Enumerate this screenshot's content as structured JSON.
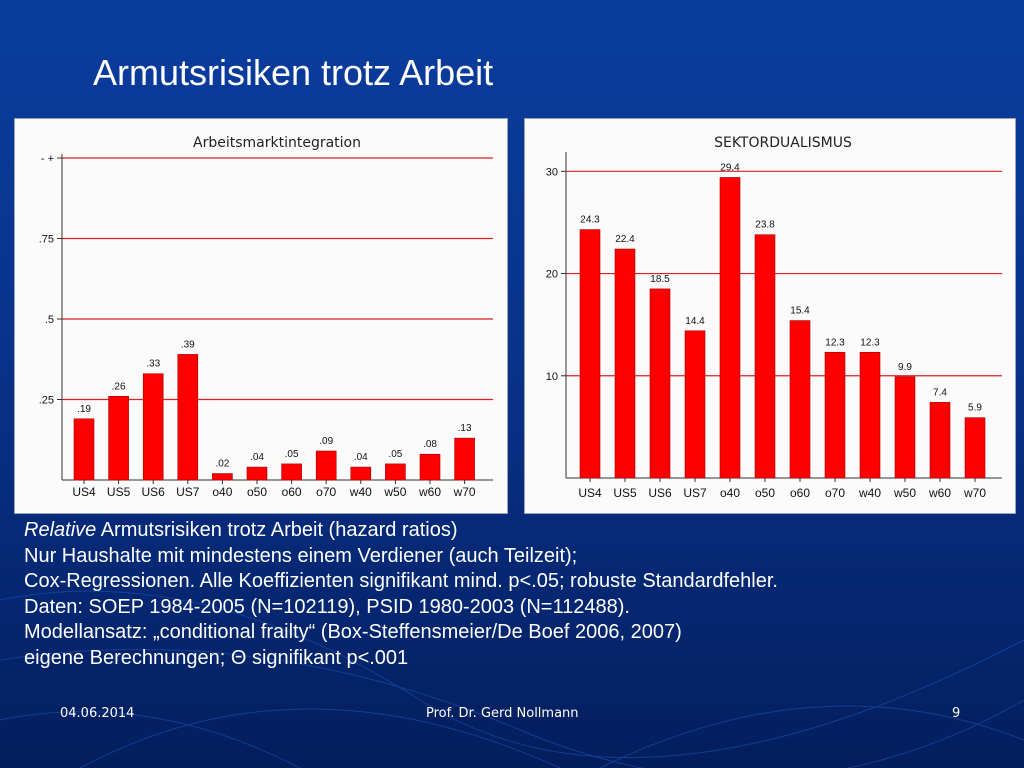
{
  "slide_title": "Armutsrisiken trotz Arbeit",
  "chart_data": [
    {
      "type": "bar",
      "title": "Arbeitsmarktintegration",
      "categories": [
        "US4",
        "US5",
        "US6",
        "US7",
        "o40",
        "o50",
        "o60",
        "o70",
        "w40",
        "w50",
        "w60",
        "w70"
      ],
      "values": [
        0.19,
        0.26,
        0.33,
        0.39,
        0.02,
        0.04,
        0.05,
        0.09,
        0.04,
        0.05,
        0.08,
        0.13
      ],
      "value_labels": [
        ".19",
        ".26",
        ".33",
        ".39",
        ".02",
        ".04",
        ".05",
        ".09",
        ".04",
        ".05",
        ".08",
        ".13"
      ],
      "ylim": [
        0,
        1
      ],
      "yticks": [
        {
          "value": 0.25,
          "label": ".25"
        },
        {
          "value": 0.5,
          "label": ".5"
        },
        {
          "value": 0.75,
          "label": ".75"
        },
        {
          "value": 1.0,
          "label": "-  +"
        }
      ],
      "grid": true,
      "bar_color": "#ff0000",
      "grid_color": "#e02020"
    },
    {
      "type": "bar",
      "title": "SEKTORDUALISMUS",
      "categories": [
        "US4",
        "US5",
        "US6",
        "US7",
        "o40",
        "o50",
        "o60",
        "o70",
        "w40",
        "w50",
        "w60",
        "w70"
      ],
      "values": [
        24.3,
        22.4,
        18.5,
        14.4,
        29.4,
        23.8,
        15.4,
        12.3,
        12.3,
        9.9,
        7.4,
        5.9
      ],
      "value_labels": [
        "24.3",
        "22.4",
        "18.5",
        "14.4",
        "29.4",
        "23.8",
        "15.4",
        "12.3",
        "12.3",
        "9.9",
        "7.4",
        "5.9"
      ],
      "ylim": [
        0,
        31.5
      ],
      "yticks": [
        {
          "value": 10,
          "label": "10"
        },
        {
          "value": 20,
          "label": "20"
        },
        {
          "value": 30,
          "label": "30"
        }
      ],
      "grid": true,
      "bar_color": "#ff0000",
      "grid_color": "#e02020"
    }
  ],
  "caption": {
    "line1_italic": "Relative",
    "line1_rest": " Armutsrisiken trotz Arbeit (hazard ratios)",
    "line2": "Nur Haushalte mit mindestens einem Verdiener (auch Teilzeit);",
    "line3": "Cox-Regressionen. Alle Koeffizienten signifikant mind. p<.05; robuste Standardfehler.",
    "line4": "Daten: SOEP 1984-2005 (N=102119), PSID 1980-2003 (N=112488).",
    "line5": "Modellansatz: „conditional frailty“ (Box-Steffensmeier/De Boef 2006, 2007)",
    "line6": "eigene Berechnungen; Θ signifikant p<.001"
  },
  "footer": {
    "date": "04.06.2014",
    "author": "Prof. Dr. Gerd Nollmann",
    "page": "9"
  }
}
